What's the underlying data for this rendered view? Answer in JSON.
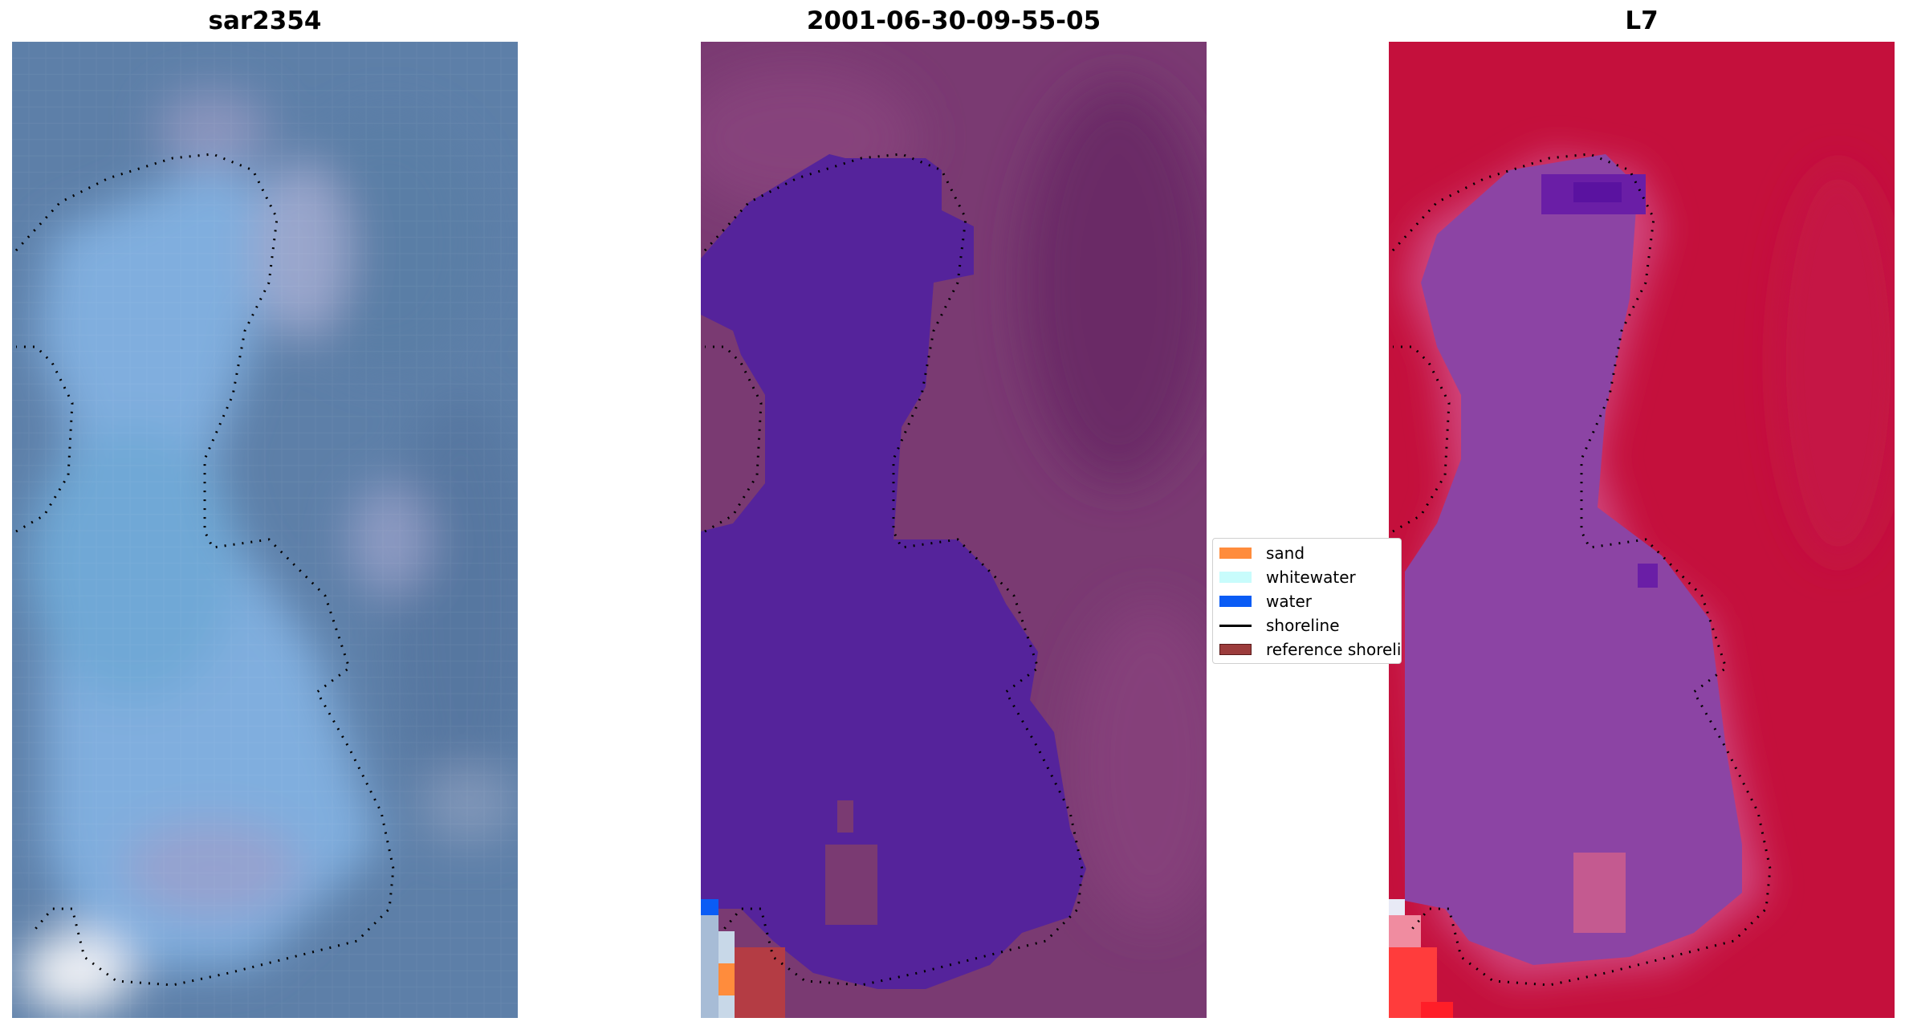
{
  "panels": [
    {
      "title": "sar2354"
    },
    {
      "title": "2001-06-30-09-55-05"
    },
    {
      "title": "L7"
    }
  ],
  "legend": {
    "items": [
      {
        "label": "sand",
        "color": "#ff8c3c",
        "kind": "patch"
      },
      {
        "label": "whitewater",
        "color": "#c8fcfc",
        "kind": "patch"
      },
      {
        "label": "water",
        "color": "#0a5cf5",
        "kind": "patch"
      },
      {
        "label": "shoreline",
        "color": "#000000",
        "kind": "line"
      },
      {
        "label": "reference shoreline",
        "color": "#9c3c3c",
        "kind": "patch"
      }
    ]
  },
  "colors": {
    "rgb_base": "#6a8ab0",
    "rgb_water": "#7aa8d0",
    "class_background": "#7a3a72",
    "class_water": "#55239b",
    "ndwi_land": "#c4103c",
    "ndwi_water": "#8c44a4"
  }
}
